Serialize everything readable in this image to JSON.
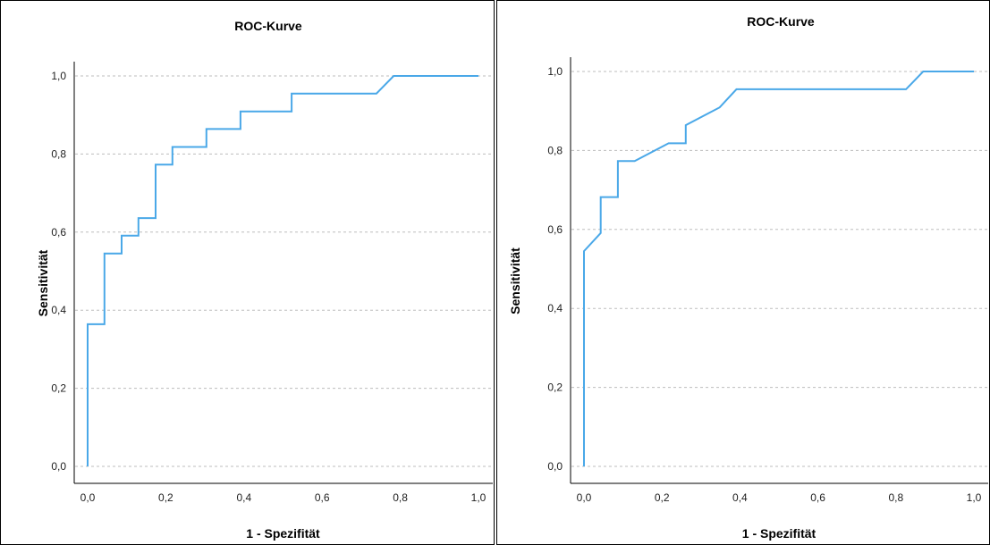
{
  "colors": {
    "curve": "#4aa8e8",
    "grid": "#bdbdbd",
    "axis": "#000000",
    "border": "#000000"
  },
  "chart_data": [
    {
      "type": "line",
      "title": "ROC-Kurve",
      "xlabel": "1 - Spezifität",
      "ylabel": "Sensitivität",
      "xlim": [
        0,
        1
      ],
      "ylim": [
        0,
        1
      ],
      "x_ticks": [
        "0,0",
        "0,2",
        "0,4",
        "0,6",
        "0,8",
        "1,0"
      ],
      "y_ticks": [
        "0,0",
        "0,2",
        "0,4",
        "0,6",
        "0,8",
        "1,0"
      ],
      "grid": "horizontal dashed",
      "series": [
        {
          "points": [
            [
              0.0,
              0.0
            ],
            [
              0.0,
              0.364
            ],
            [
              0.043,
              0.364
            ],
            [
              0.043,
              0.545
            ],
            [
              0.087,
              0.545
            ],
            [
              0.087,
              0.591
            ],
            [
              0.13,
              0.591
            ],
            [
              0.13,
              0.636
            ],
            [
              0.174,
              0.636
            ],
            [
              0.174,
              0.773
            ],
            [
              0.217,
              0.773
            ],
            [
              0.217,
              0.818
            ],
            [
              0.304,
              0.818
            ],
            [
              0.304,
              0.864
            ],
            [
              0.391,
              0.864
            ],
            [
              0.391,
              0.909
            ],
            [
              0.522,
              0.909
            ],
            [
              0.522,
              0.955
            ],
            [
              0.739,
              0.955
            ],
            [
              0.783,
              1.0
            ],
            [
              1.0,
              1.0
            ]
          ]
        }
      ]
    },
    {
      "type": "line",
      "title": "ROC-Kurve",
      "xlabel": "1 - Spezifität",
      "ylabel": "Sensitivität",
      "xlim": [
        0,
        1
      ],
      "ylim": [
        0,
        1
      ],
      "x_ticks": [
        "0,0",
        "0,2",
        "0,4",
        "0,6",
        "0,8",
        "1,0"
      ],
      "y_ticks": [
        "0,0",
        "0,2",
        "0,4",
        "0,6",
        "0,8",
        "1,0"
      ],
      "grid": "horizontal dashed",
      "series": [
        {
          "points": [
            [
              0.0,
              0.0
            ],
            [
              0.0,
              0.545
            ],
            [
              0.043,
              0.591
            ],
            [
              0.043,
              0.682
            ],
            [
              0.087,
              0.682
            ],
            [
              0.087,
              0.773
            ],
            [
              0.13,
              0.773
            ],
            [
              0.217,
              0.818
            ],
            [
              0.261,
              0.818
            ],
            [
              0.261,
              0.864
            ],
            [
              0.348,
              0.909
            ],
            [
              0.391,
              0.955
            ],
            [
              0.826,
              0.955
            ],
            [
              0.87,
              1.0
            ],
            [
              1.0,
              1.0
            ]
          ]
        }
      ]
    }
  ]
}
